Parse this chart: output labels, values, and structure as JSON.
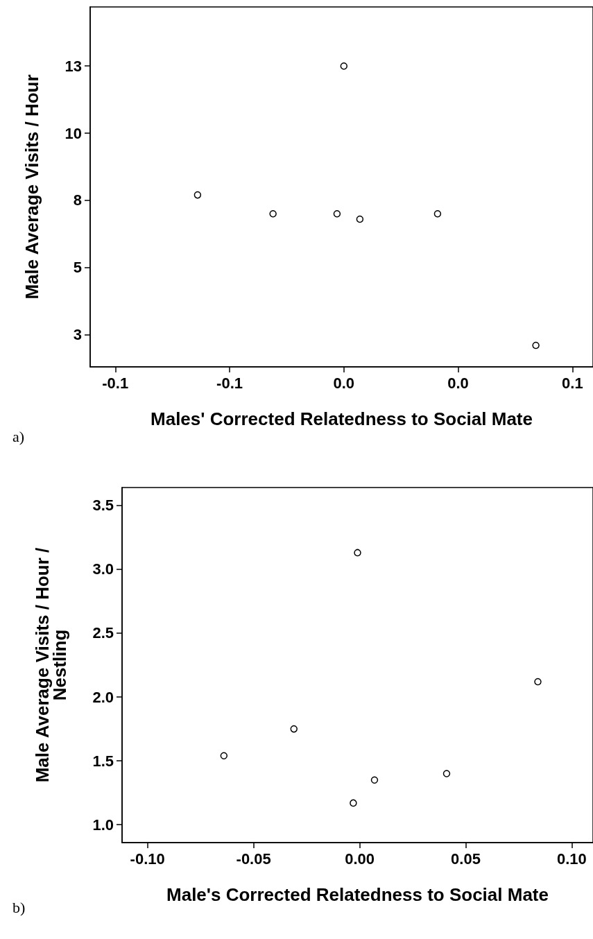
{
  "chart_data": [
    {
      "type": "scatter",
      "xlabel": "Males' Corrected Relatedness to Social Mate",
      "ylabel": "Male Average Visits / Hour",
      "annotations": [
        "a)"
      ],
      "marker": "circle",
      "xlim": [
        -0.111,
        0.109
      ],
      "xticks": [
        {
          "value": -0.1,
          "label": "-0.1"
        },
        {
          "value": -0.05,
          "label": "-0.1"
        },
        {
          "value": 0,
          "label": "0.0"
        },
        {
          "value": 0.05,
          "label": "0.0"
        },
        {
          "value": 0.1,
          "label": "0.1"
        }
      ],
      "ylim": [
        1.3,
        14.7
      ],
      "yticks": [
        {
          "value": 2.5,
          "label": "3"
        },
        {
          "value": 5,
          "label": "5"
        },
        {
          "value": 7.5,
          "label": "8"
        },
        {
          "value": 10,
          "label": "10"
        },
        {
          "value": 12.5,
          "label": "13"
        }
      ],
      "series": [
        {
          "color": "#000000",
          "x": [
            -0.064,
            -0.031,
            0.0,
            -0.003,
            0.007,
            0.041,
            0.084
          ],
          "values": [
            7.7,
            7.0,
            12.5,
            7.0,
            6.8,
            7.0,
            2.1
          ]
        }
      ]
    },
    {
      "type": "scatter",
      "xlabel": "Male's Corrected Relatedness to Social Mate",
      "ylabel": "Male Average Visits / Hour / Nestling",
      "annotations": [
        "b)"
      ],
      "marker": "circle",
      "xlim": [
        -0.112,
        0.11
      ],
      "xticks": [
        {
          "value": -0.1,
          "label": "-0.10"
        },
        {
          "value": -0.05,
          "label": "-0.05"
        },
        {
          "value": 0,
          "label": "0.00"
        },
        {
          "value": 0.05,
          "label": "0.05"
        },
        {
          "value": 0.1,
          "label": "0.10"
        }
      ],
      "ylim": [
        0.86,
        3.64
      ],
      "yticks": [
        {
          "value": 1,
          "label": "1.0"
        },
        {
          "value": 1.5,
          "label": "1.5"
        },
        {
          "value": 2,
          "label": "2.0"
        },
        {
          "value": 2.5,
          "label": "2.5"
        },
        {
          "value": 3,
          "label": "3.0"
        },
        {
          "value": 3.5,
          "label": "3.5"
        }
      ],
      "series": [
        {
          "color": "#000000",
          "x": [
            -0.064,
            -0.031,
            -0.001,
            -0.003,
            0.007,
            0.041,
            0.084
          ],
          "values": [
            1.54,
            1.75,
            3.13,
            1.17,
            1.35,
            1.4,
            2.12
          ]
        }
      ]
    }
  ]
}
